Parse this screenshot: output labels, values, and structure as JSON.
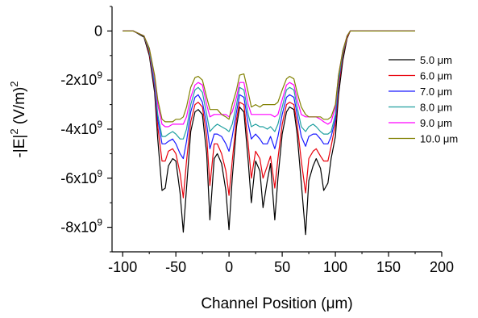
{
  "chart_data": {
    "type": "line",
    "xlabel": "Channel Position (μm)",
    "ylabel_html": {
      "prefix": "-|E|",
      "sup": "2",
      "suffix": " (V/m)",
      "sup2": "2"
    },
    "xlim": [
      -110,
      200
    ],
    "ylim": [
      -9000000000,
      1000000000
    ],
    "xticks": [
      -100,
      -50,
      0,
      50,
      100,
      150,
      200
    ],
    "xtick_labels": [
      "-100",
      "-50",
      "0",
      "50",
      "100",
      "150",
      "200"
    ],
    "yticks": [
      0,
      -2000000000,
      -4000000000,
      -6000000000,
      -8000000000
    ],
    "ytick_labels": [
      {
        "base": "0",
        "exp": ""
      },
      {
        "base": "-2x10",
        "exp": "9"
      },
      {
        "base": "-4x10",
        "exp": "9"
      },
      {
        "base": "-6x10",
        "exp": "9"
      },
      {
        "base": "-8x10",
        "exp": "9"
      }
    ],
    "legend_position": "right",
    "x": [
      -100,
      -90,
      -80,
      -75,
      -70,
      -67,
      -63,
      -60,
      -57,
      -53,
      -50,
      -46,
      -43,
      -40,
      -36,
      -32,
      -29,
      -25,
      -21,
      -18,
      -14,
      -11,
      -7,
      -3,
      0,
      3,
      7,
      10,
      14,
      18,
      21,
      25,
      29,
      32,
      36,
      39,
      43,
      46,
      50,
      54,
      57,
      61,
      64,
      68,
      72,
      75,
      79,
      82,
      86,
      89,
      93,
      96,
      100,
      103,
      107,
      111,
      114,
      118,
      125,
      130,
      135,
      145,
      160,
      175
    ],
    "series": [
      {
        "name": "5.0 μm",
        "color": "#000000",
        "values": [
          0,
          0,
          -0.25,
          -1.0,
          -2.5,
          -4.4,
          -6.5,
          -6.4,
          -5.5,
          -5.2,
          -5.3,
          -6.6,
          -8.2,
          -6.4,
          -4.1,
          -3.3,
          -3.2,
          -3.4,
          -5.0,
          -7.7,
          -5.2,
          -5.0,
          -5.4,
          -6.5,
          -8.1,
          -6.0,
          -3.9,
          -3.1,
          -3.3,
          -5.3,
          -7.0,
          -5.3,
          -5.7,
          -7.2,
          -6.1,
          -5.4,
          -7.7,
          -6.0,
          -4.2,
          -3.3,
          -3.1,
          -3.2,
          -4.2,
          -6.2,
          -8.3,
          -6.1,
          -5.5,
          -5.2,
          -5.6,
          -6.5,
          -6.2,
          -5.2,
          -4.3,
          -2.6,
          -1.2,
          -0.3,
          0,
          0,
          0,
          0,
          0,
          0,
          0,
          0
        ]
      },
      {
        "name": "6.0 μm",
        "color": "#e8000b",
        "values": [
          0,
          0,
          -0.2,
          -0.9,
          -2.3,
          -3.9,
          -5.3,
          -5.3,
          -4.9,
          -4.8,
          -5.0,
          -5.8,
          -6.8,
          -5.3,
          -3.7,
          -3.0,
          -2.9,
          -3.1,
          -4.3,
          -6.3,
          -4.6,
          -4.6,
          -5.0,
          -5.7,
          -6.7,
          -5.3,
          -3.6,
          -2.9,
          -3.0,
          -4.6,
          -6.0,
          -4.9,
          -5.2,
          -6.0,
          -5.5,
          -5.1,
          -6.4,
          -5.2,
          -3.8,
          -3.0,
          -2.9,
          -3.0,
          -3.8,
          -5.3,
          -6.6,
          -5.2,
          -4.9,
          -4.8,
          -5.1,
          -5.3,
          -5.3,
          -4.7,
          -3.8,
          -2.3,
          -1.0,
          -0.25,
          0,
          0,
          0,
          0,
          0,
          0,
          0,
          0
        ]
      },
      {
        "name": "7.0 μm",
        "color": "#1a1aff",
        "values": [
          0,
          0,
          -0.2,
          -0.8,
          -2.2,
          -3.6,
          -4.6,
          -4.6,
          -4.5,
          -4.4,
          -4.6,
          -5.0,
          -5.2,
          -4.5,
          -3.3,
          -2.7,
          -2.6,
          -2.9,
          -3.8,
          -4.8,
          -4.2,
          -4.2,
          -4.3,
          -4.6,
          -4.9,
          -4.3,
          -3.3,
          -2.6,
          -2.7,
          -3.8,
          -4.4,
          -4.2,
          -4.4,
          -4.6,
          -4.6,
          -4.3,
          -4.8,
          -4.3,
          -3.4,
          -2.7,
          -2.6,
          -2.7,
          -3.4,
          -4.3,
          -4.7,
          -4.3,
          -4.2,
          -4.2,
          -4.4,
          -4.6,
          -4.6,
          -4.3,
          -3.6,
          -2.1,
          -0.9,
          -0.2,
          0,
          0,
          0,
          0,
          0,
          0,
          0,
          0
        ]
      },
      {
        "name": "8.0 μm",
        "color": "#20a0a0",
        "values": [
          0,
          0,
          -0.2,
          -0.8,
          -2.1,
          -3.4,
          -4.3,
          -4.3,
          -4.2,
          -4.1,
          -4.2,
          -4.4,
          -4.4,
          -4.0,
          -3.0,
          -2.4,
          -2.3,
          -2.5,
          -3.4,
          -4.1,
          -3.9,
          -3.8,
          -3.9,
          -4.0,
          -4.1,
          -3.8,
          -3.0,
          -2.3,
          -2.4,
          -3.4,
          -3.9,
          -3.8,
          -3.9,
          -3.9,
          -4.0,
          -3.9,
          -4.1,
          -3.8,
          -3.1,
          -2.4,
          -2.3,
          -2.4,
          -3.1,
          -3.9,
          -4.1,
          -3.9,
          -3.8,
          -3.9,
          -4.1,
          -4.2,
          -4.2,
          -4.1,
          -3.4,
          -2.0,
          -0.9,
          -0.2,
          0,
          0,
          0,
          0,
          0,
          0,
          0,
          0
        ]
      },
      {
        "name": "9.0 μm",
        "color": "#ff00ff",
        "values": [
          0,
          0,
          -0.2,
          -0.7,
          -1.9,
          -3.0,
          -3.8,
          -3.9,
          -3.9,
          -3.8,
          -3.8,
          -3.8,
          -3.8,
          -3.5,
          -2.7,
          -2.2,
          -2.1,
          -2.2,
          -3.0,
          -3.5,
          -3.4,
          -3.4,
          -3.4,
          -3.4,
          -3.5,
          -3.3,
          -2.7,
          -2.1,
          -2.1,
          -3.0,
          -3.4,
          -3.4,
          -3.4,
          -3.4,
          -3.4,
          -3.4,
          -3.5,
          -3.4,
          -2.8,
          -2.2,
          -2.1,
          -2.2,
          -2.8,
          -3.4,
          -3.5,
          -3.5,
          -3.5,
          -3.5,
          -3.6,
          -3.7,
          -3.8,
          -3.7,
          -3.1,
          -1.8,
          -0.8,
          -0.2,
          0,
          0,
          0,
          0,
          0,
          0,
          0,
          0
        ]
      },
      {
        "name": "10.0 μm",
        "color": "#808000",
        "values": [
          0,
          0,
          -0.2,
          -0.7,
          -1.8,
          -2.8,
          -3.6,
          -3.7,
          -3.7,
          -3.7,
          -3.6,
          -3.6,
          -3.5,
          -3.1,
          -2.3,
          -1.9,
          -1.85,
          -2.0,
          -2.7,
          -3.2,
          -3.2,
          -3.2,
          -3.4,
          -3.5,
          -3.6,
          -3.0,
          -2.4,
          -1.8,
          -1.75,
          -2.5,
          -3.1,
          -3.0,
          -3.1,
          -3.0,
          -3.0,
          -3.0,
          -3.0,
          -2.9,
          -2.4,
          -1.95,
          -1.85,
          -1.95,
          -2.5,
          -3.1,
          -3.4,
          -3.5,
          -3.5,
          -3.5,
          -3.5,
          -3.6,
          -3.6,
          -3.5,
          -3.0,
          -1.8,
          -0.8,
          -0.2,
          0,
          0,
          0,
          0,
          0,
          0,
          0,
          0
        ]
      }
    ],
    "y_scale": 1000000000
  }
}
